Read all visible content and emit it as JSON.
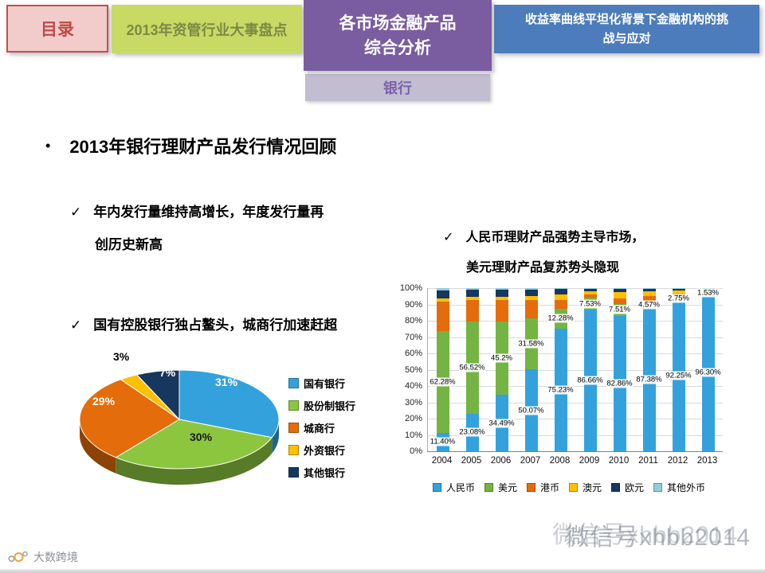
{
  "nav": {
    "toc": "目录",
    "review": "2013年资管行业大事盘点",
    "products_line1": "各市场金融产品",
    "products_line2": "综合分析",
    "challenge_line1": "收益率曲线平坦化背景下金融机构的挑",
    "challenge_line2": "战与应对",
    "subtab": "银行"
  },
  "content": {
    "title_bullet": "•",
    "title": "2013年银行理财产品发行情况回顾",
    "check_mark": "✓",
    "point_issuance_1": "年内发行量维持高增长，年度发行量再",
    "point_issuance_2": "创历史新高",
    "point_banks": "国有控股银行独占鳌头，城商行加速赶超",
    "point_currency_1": "人民币理财产品强势主导市场，",
    "point_currency_2": "美元理财产品复苏势头隐现"
  },
  "footer": {
    "brand": "大数跨境",
    "watermark": "微信号xhbb2014"
  },
  "chart_data": [
    {
      "type": "pie",
      "style": "3d",
      "labels": [
        "国有银行",
        "股份制银行",
        "城商行",
        "外资银行",
        "其他银行"
      ],
      "values": [
        31,
        30,
        29,
        3,
        7
      ],
      "value_labels": [
        "31%",
        "30%",
        "29%",
        "3%",
        "7%"
      ],
      "colors": [
        "#33A2DC",
        "#8CC63F",
        "#E46C0A",
        "#FFC000",
        "#17375E"
      ],
      "legend_position": "right"
    },
    {
      "type": "bar",
      "subtype": "stacked-100",
      "categories": [
        "2004",
        "2005",
        "2006",
        "2007",
        "2008",
        "2009",
        "2010",
        "2011",
        "2012",
        "2013"
      ],
      "series": [
        {
          "name": "人民币",
          "color": "#33A2DC",
          "values": [
            11.4,
            23.08,
            34.49,
            50.07,
            75.23,
            86.66,
            82.86,
            87.38,
            92.25,
            96.3
          ],
          "labels": [
            "11.40%",
            "23.08%",
            "34.49%",
            "50.07%",
            "75.23%",
            "86.66%",
            "82.86%",
            "87.38%",
            "92.25%",
            "96.30%"
          ]
        },
        {
          "name": "美元",
          "color": "#74B443",
          "values": [
            62.28,
            56.52,
            45.2,
            31.58,
            12.28,
            7.53,
            7.51,
            4.57,
            2.75,
            1.53
          ],
          "labels": [
            "62.28%",
            "56.52%",
            "45.2%",
            "31.58%",
            "12.28%",
            "7.53%",
            "7.51%",
            "4.57%",
            "2.75%",
            "1.53%"
          ]
        },
        {
          "name": "港币",
          "color": "#E46C0A",
          "values": [
            18.0,
            13.0,
            13.0,
            11.0,
            5.0,
            2.0,
            3.5,
            3.0,
            1.5,
            0.7
          ]
        },
        {
          "name": "澳元",
          "color": "#FFC000",
          "values": [
            2.0,
            2.0,
            2.0,
            2.5,
            3.5,
            2.0,
            3.5,
            3.0,
            2.0,
            0.9
          ]
        },
        {
          "name": "欧元",
          "color": "#17375E",
          "values": [
            5.0,
            4.4,
            4.3,
            4.0,
            3.5,
            1.5,
            2.0,
            1.8,
            1.2,
            0.45
          ]
        },
        {
          "name": "其他外币",
          "color": "#92CDDC",
          "values": [
            1.32,
            1.0,
            1.01,
            0.85,
            0.49,
            0.31,
            0.63,
            0.25,
            0.3,
            0.12
          ]
        }
      ],
      "yticks": [
        "0%",
        "10%",
        "20%",
        "30%",
        "40%",
        "50%",
        "60%",
        "70%",
        "80%",
        "90%",
        "100%"
      ],
      "ylim": [
        0,
        100
      ],
      "grid": true,
      "legend_position": "bottom"
    }
  ]
}
